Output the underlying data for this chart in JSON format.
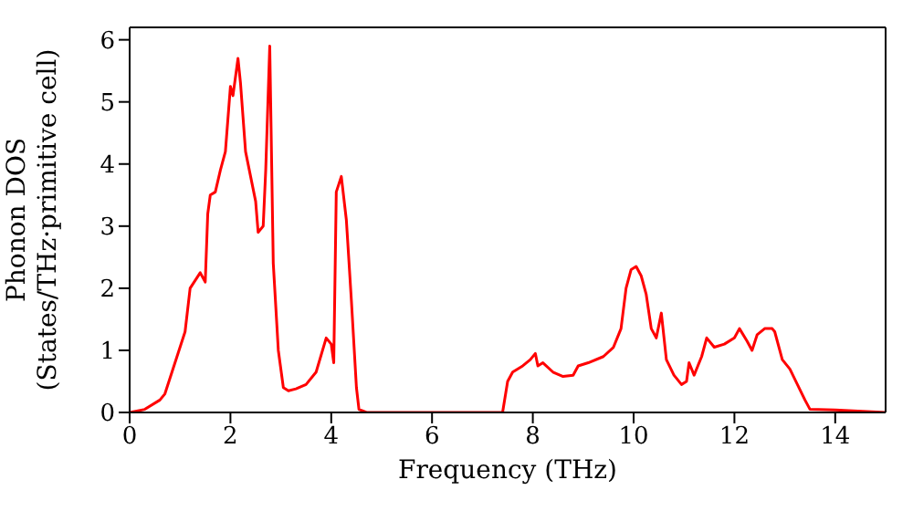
{
  "chart_data": {
    "type": "line",
    "xlabel": "Frequency (THz)",
    "ylabel": "Phonon DOS\n(States/THz·primitive cell)",
    "xlim": [
      0,
      15
    ],
    "xticks": [
      0,
      2,
      4,
      6,
      8,
      10,
      12,
      14
    ],
    "ylim": [
      0,
      6.2
    ],
    "yticks": [
      0,
      1,
      2,
      3,
      4,
      5,
      6
    ],
    "grid": false,
    "legend": false,
    "marker": "none",
    "line_style": "solid",
    "x": [
      0,
      0.3,
      0.6,
      0.7,
      0.9,
      1.1,
      1.2,
      1.4,
      1.5,
      1.55,
      1.6,
      1.7,
      1.8,
      1.9,
      2.0,
      2.05,
      2.15,
      2.2,
      2.3,
      2.5,
      2.55,
      2.65,
      2.7,
      2.78,
      2.85,
      2.95,
      3.05,
      3.15,
      3.3,
      3.5,
      3.7,
      3.9,
      4.0,
      4.05,
      4.1,
      4.2,
      4.3,
      4.4,
      4.5,
      4.55,
      4.7,
      7.4,
      7.5,
      7.6,
      7.8,
      7.95,
      8.05,
      8.1,
      8.2,
      8.4,
      8.6,
      8.8,
      8.9,
      9.1,
      9.4,
      9.6,
      9.75,
      9.85,
      9.95,
      10.05,
      10.15,
      10.25,
      10.35,
      10.45,
      10.55,
      10.65,
      10.8,
      10.95,
      11.05,
      11.1,
      11.2,
      11.35,
      11.45,
      11.6,
      11.8,
      12.0,
      12.1,
      12.25,
      12.35,
      12.45,
      12.6,
      12.75,
      12.8,
      12.95,
      13.1,
      13.25,
      13.4,
      13.5,
      14,
      15
    ],
    "series": [
      {
        "color": "#ff0000",
        "values": [
          0,
          0.05,
          0.2,
          0.3,
          0.8,
          1.3,
          2.0,
          2.25,
          2.1,
          3.2,
          3.5,
          3.55,
          3.9,
          4.2,
          5.25,
          5.1,
          5.7,
          5.3,
          4.2,
          3.4,
          2.9,
          3.0,
          3.9,
          5.9,
          2.4,
          1.0,
          0.4,
          0.35,
          0.38,
          0.45,
          0.65,
          1.2,
          1.1,
          0.8,
          3.55,
          3.8,
          3.1,
          1.8,
          0.4,
          0.05,
          0,
          0,
          0.5,
          0.65,
          0.75,
          0.85,
          0.95,
          0.75,
          0.8,
          0.65,
          0.58,
          0.6,
          0.75,
          0.8,
          0.9,
          1.05,
          1.35,
          2.0,
          2.3,
          2.35,
          2.2,
          1.9,
          1.35,
          1.2,
          1.6,
          0.85,
          0.6,
          0.45,
          0.5,
          0.8,
          0.6,
          0.9,
          1.2,
          1.05,
          1.1,
          1.2,
          1.35,
          1.15,
          1.0,
          1.25,
          1.35,
          1.35,
          1.3,
          0.85,
          0.7,
          0.45,
          0.2,
          0.05,
          0.04,
          0
        ]
      }
    ]
  }
}
